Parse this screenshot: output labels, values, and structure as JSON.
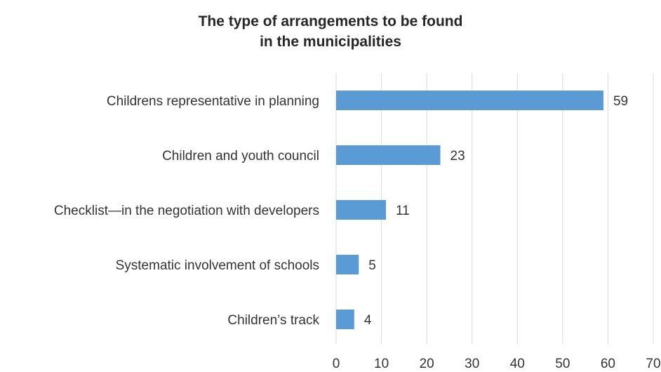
{
  "chart_data": {
    "type": "bar",
    "orientation": "horizontal",
    "title_lines": [
      "The type of arrangements to be found",
      "in the municipalities"
    ],
    "categories": [
      "Childrens representative in planning",
      "Children and youth council",
      "Checklist—in the negotiation with developers",
      "Systematic involvement of schools",
      "Children’s track"
    ],
    "values": [
      59,
      23,
      11,
      5,
      4
    ],
    "xlim": [
      0,
      70
    ],
    "xticks": [
      0,
      10,
      20,
      30,
      40,
      50,
      60,
      70
    ],
    "grid": true,
    "legend": "none",
    "bar_color": "#5B9BD5",
    "grid_color": "#D9D9D9"
  }
}
